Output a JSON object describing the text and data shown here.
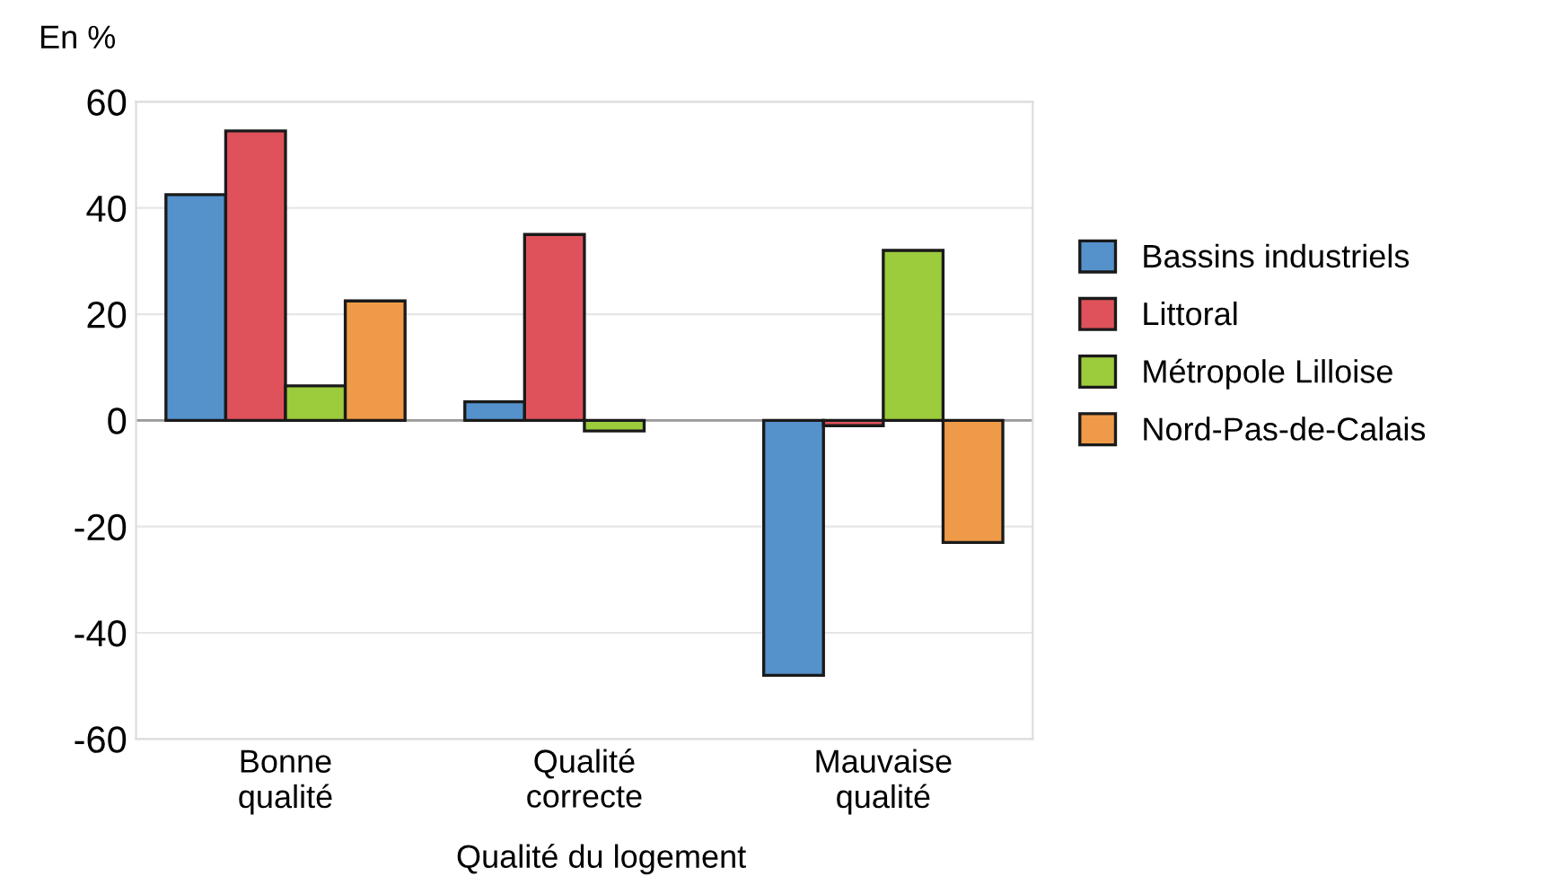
{
  "chart_data": {
    "type": "bar",
    "ylabel": "En %",
    "xlabel": "Qualité du logement",
    "categories": [
      "Bonne\nqualité",
      "Qualité\ncorrecte",
      "Mauvaise\nqualité"
    ],
    "series": [
      {
        "name": "Bassins industriels",
        "color": "#5592cc",
        "values": [
          42.5,
          3.5,
          -48
        ]
      },
      {
        "name": "Littoral",
        "color": "#e0525b",
        "values": [
          54.5,
          35,
          -1
        ]
      },
      {
        "name": "Métropole Lilloise",
        "color": "#9ccb3c",
        "values": [
          6.5,
          -2,
          32
        ]
      },
      {
        "name": "Nord-Pas-de-Calais",
        "color": "#ee9a48",
        "values": [
          22.5,
          null,
          -23
        ]
      }
    ],
    "ylim": [
      -60,
      60
    ],
    "yticks": [
      -60,
      -40,
      -20,
      0,
      20,
      40,
      60
    ],
    "grid": "y",
    "legend": "right"
  }
}
